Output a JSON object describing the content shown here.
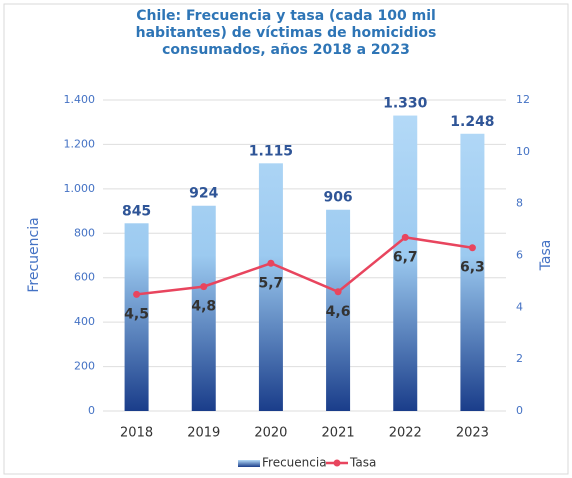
{
  "chart_data": {
    "type": "bar-line",
    "title": "Chile: Frecuencia y tasa (cada 100 mil habitantes) de víctimas de homicidios consumados, años 2018 a 2023",
    "categories": [
      "2018",
      "2019",
      "2020",
      "2021",
      "2022",
      "2023"
    ],
    "series": [
      {
        "name": "Frecuencia",
        "type": "bar",
        "color": "#1f3f8c",
        "values": [
          845,
          924,
          1115,
          906,
          1330,
          1248
        ],
        "value_labels": [
          "845",
          "924",
          "1.115",
          "906",
          "1.330",
          "1.248"
        ]
      },
      {
        "name": "Tasa",
        "type": "line",
        "axis": "y2",
        "color": "#e8455e",
        "values": [
          4.5,
          4.8,
          5.7,
          4.6,
          6.7,
          6.3
        ],
        "value_labels": [
          "4,5",
          "4,8",
          "5,7",
          "4,6",
          "6,7",
          "6,3"
        ]
      }
    ],
    "ylabel": "Frecuencia",
    "y2label": "Tasa",
    "ylim": [
      0,
      1400
    ],
    "yticks": [
      0,
      200,
      400,
      600,
      800,
      {
        "value": 1000,
        "label": "1.000"
      },
      {
        "value": 1200,
        "label": "1.200"
      },
      {
        "value": 1400,
        "label": "1.400"
      }
    ],
    "y2lim": [
      0,
      12
    ],
    "y2ticks": [
      0,
      2,
      4,
      6,
      8,
      10,
      12
    ],
    "grid": true,
    "legend": "bottom"
  }
}
